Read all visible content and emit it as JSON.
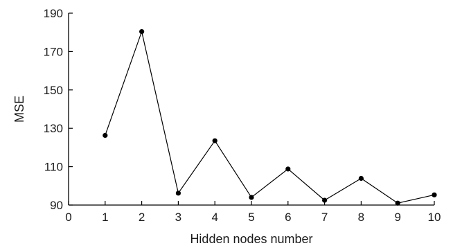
{
  "chart_data": {
    "type": "line",
    "title": "",
    "xlabel": "Hidden nodes number",
    "ylabel": "MSE",
    "xlim": [
      0,
      10
    ],
    "ylim": [
      90,
      190
    ],
    "xticks": [
      "0",
      "1",
      "2",
      "3",
      "4",
      "5",
      "6",
      "7",
      "8",
      "9",
      "10"
    ],
    "yticks": [
      "90",
      "110",
      "130",
      "150",
      "170",
      "190"
    ],
    "grid": false,
    "series": [
      {
        "x": [
          1,
          2,
          3,
          4,
          5,
          6,
          7,
          8,
          9,
          10
        ],
        "y": [
          126.3,
          180.4,
          96.2,
          123.5,
          94.0,
          108.8,
          92.5,
          103.9,
          91.0,
          95.3
        ]
      }
    ],
    "colors": {
      "line": "#000000",
      "marker": "#000000",
      "axis": "#000000"
    }
  }
}
